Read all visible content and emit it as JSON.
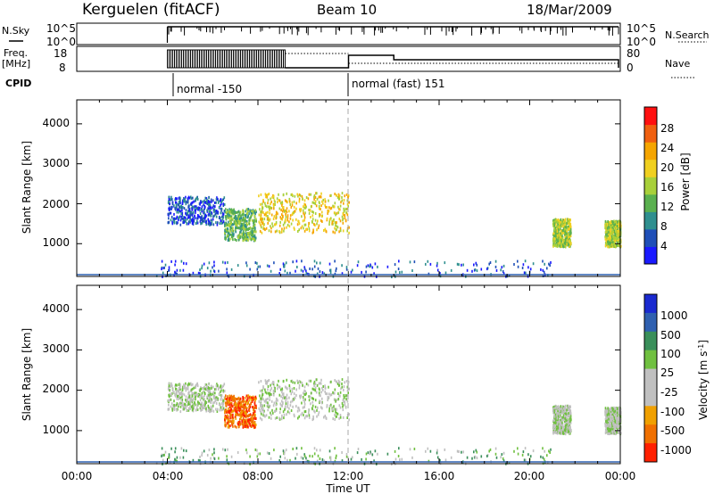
{
  "header": {
    "station": "Kerguelen (fitACF)",
    "beam": "Beam 10",
    "date": "18/Mar/2009"
  },
  "status_panel": {
    "nsky_label": "N.Sky",
    "nsky_ticks": [
      "10^5",
      "10^0"
    ],
    "nsearch_label": "N.Search",
    "nsearch_ticks": [
      "10^5",
      "10^0"
    ],
    "freq_label": "Freq.",
    "freq_unit": "[MHz]",
    "freq_ticks": [
      "18",
      "8"
    ],
    "nave_label": "Nave",
    "nave_ticks": [
      "80",
      "0"
    ],
    "cpid_label": "CPID",
    "cpid_segments": [
      {
        "label": "normal -150",
        "start_hour": 4.0
      },
      {
        "label": "normal (fast) 151",
        "start_hour": 12.0
      }
    ]
  },
  "chart_data": [
    {
      "type": "heatmap",
      "quantity": "Power",
      "ylabel": "Slant Range [km]",
      "xlabel": "Time UT",
      "xlim_hours": [
        0,
        24
      ],
      "ylim_km": [
        180,
        4600
      ],
      "yticks": [
        "1000",
        "2000",
        "3000",
        "4000"
      ],
      "xticks": [
        "00:00",
        "04:00",
        "08:00",
        "12:00",
        "16:00",
        "20:00",
        "00:00"
      ],
      "colorbar": {
        "label": "Power [dB]",
        "ticks": [
          "4",
          "8",
          "12",
          "16",
          "20",
          "24",
          "28"
        ],
        "colors": [
          "#1a1aff",
          "#1f4fb8",
          "#2f8f8f",
          "#5ab04f",
          "#a8d03a",
          "#f0d020",
          "#f5a500",
          "#f06010",
          "#ff1010"
        ]
      },
      "echo_regions": [
        {
          "name": "A",
          "t0": 4.0,
          "t1": 6.5,
          "r0": 1500,
          "r1": 2200,
          "level": 1
        },
        {
          "name": "B",
          "t0": 6.5,
          "t1": 7.9,
          "r0": 1100,
          "r1": 1900,
          "level": 3
        },
        {
          "name": "C",
          "t0": 8.0,
          "t1": 12.0,
          "r0": 1300,
          "r1": 2300,
          "level": 5
        },
        {
          "name": "D",
          "t0": 21.0,
          "t1": 21.8,
          "r0": 950,
          "r1": 1650,
          "level": 4
        },
        {
          "name": "E",
          "t0": 23.3,
          "t1": 24.0,
          "r0": 950,
          "r1": 1600,
          "level": 4
        },
        {
          "name": "near",
          "t0": 3.5,
          "t1": 21.0,
          "r0": 200,
          "r1": 600,
          "level": 1
        }
      ]
    },
    {
      "type": "heatmap",
      "quantity": "Velocity",
      "ylabel": "Slant Range [km]",
      "xlabel": "Time UT",
      "xlim_hours": [
        0,
        24
      ],
      "ylim_km": [
        180,
        4600
      ],
      "yticks": [
        "1000",
        "2000",
        "3000",
        "4000"
      ],
      "xticks": [
        "00:00",
        "04:00",
        "08:00",
        "12:00",
        "16:00",
        "20:00",
        "00:00"
      ],
      "colorbar": {
        "label": "Velocity [m s",
        "label_sup": "-1",
        "label_end": "]",
        "ticks": [
          "1000",
          "500",
          "100",
          "25",
          "-25",
          "-100",
          "-500",
          "-1000"
        ],
        "colors": [
          "#1a2ad0",
          "#2f60b0",
          "#3a8f5a",
          "#70c040",
          "#c0c0c0",
          "#c0c0c0",
          "#f0a000",
          "#f07000",
          "#ff2000"
        ]
      },
      "echo_regions": [
        {
          "name": "A",
          "t0": 4.0,
          "t1": 6.5,
          "r0": 1500,
          "r1": 2200,
          "level": 4
        },
        {
          "name": "B",
          "t0": 6.5,
          "t1": 7.9,
          "r0": 1100,
          "r1": 1900,
          "level": 7
        },
        {
          "name": "C",
          "t0": 8.0,
          "t1": 12.0,
          "r0": 1300,
          "r1": 2300,
          "level": 4
        },
        {
          "name": "D",
          "t0": 21.0,
          "t1": 21.8,
          "r0": 950,
          "r1": 1650,
          "level": 4
        },
        {
          "name": "E",
          "t0": 23.3,
          "t1": 24.0,
          "r0": 950,
          "r1": 1600,
          "level": 4
        },
        {
          "name": "near",
          "t0": 3.5,
          "t1": 21.0,
          "r0": 200,
          "r1": 600,
          "level": 3
        }
      ]
    }
  ]
}
